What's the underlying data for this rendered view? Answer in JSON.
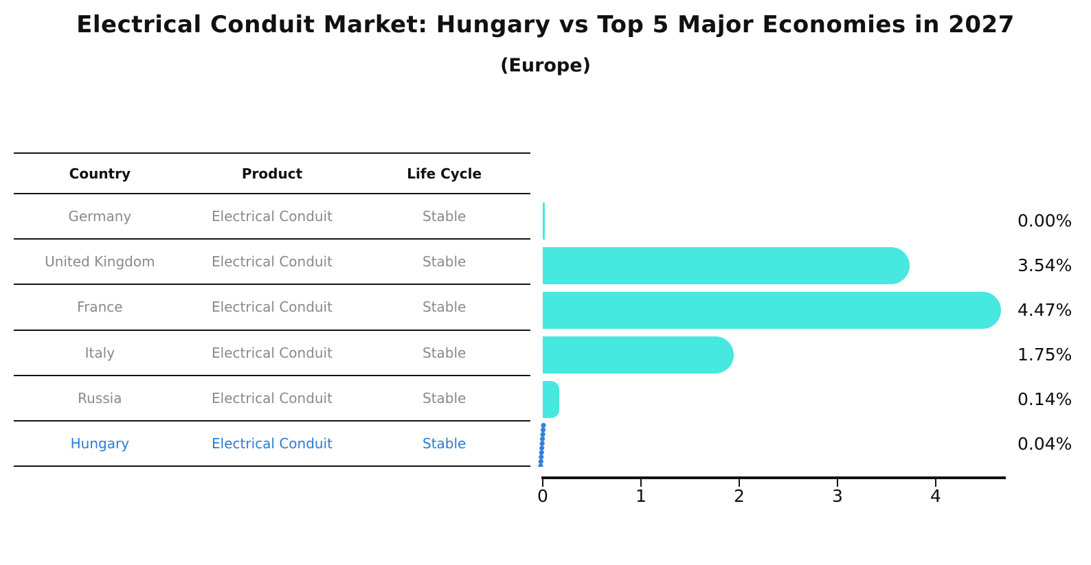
{
  "title": "Electrical Conduit Market: Hungary vs Top 5 Major Economies in 2027",
  "subtitle": "(Europe)",
  "table": {
    "headers": [
      "Country",
      "Product",
      "Life Cycle"
    ],
    "rows": [
      {
        "country": "Germany",
        "product": "Electrical Conduit",
        "life_cycle": "Stable",
        "highlight": false
      },
      {
        "country": "United Kingdom",
        "product": "Electrical Conduit",
        "life_cycle": "Stable",
        "highlight": false
      },
      {
        "country": "France",
        "product": "Electrical Conduit",
        "life_cycle": "Stable",
        "highlight": false
      },
      {
        "country": "Italy",
        "product": "Electrical Conduit",
        "life_cycle": "Stable",
        "highlight": false
      },
      {
        "country": "Russia",
        "product": "Electrical Conduit",
        "life_cycle": "Stable",
        "highlight": true
      }
    ],
    "highlight_row": {
      "country": "Hungary",
      "product": "Electrical Conduit",
      "life_cycle": "Stable"
    }
  },
  "chart_data": {
    "type": "bar",
    "orientation": "horizontal",
    "categories": [
      "Germany",
      "United Kingdom",
      "France",
      "Italy",
      "Russia",
      "Hungary"
    ],
    "values": [
      0.0,
      3.54,
      4.47,
      1.75,
      0.14,
      0.04
    ],
    "value_labels": [
      "0.00%",
      "3.54%",
      "4.47%",
      "1.75%",
      "0.14%",
      "0.04%"
    ],
    "title": "Electrical Conduit Market: Hungary vs Top 5 Major Economies in 2027 (Europe)",
    "xlabel": "",
    "ylabel": "",
    "xlim": [
      0,
      4.72
    ],
    "x_ticks": [
      "0",
      "1",
      "2",
      "3",
      "4"
    ],
    "grid": false,
    "legend": "none",
    "bar_color": "#46E8E0",
    "highlight_color": "#2f7fd8",
    "highlight_index": 5,
    "highlight_style": "dotted-marker"
  }
}
